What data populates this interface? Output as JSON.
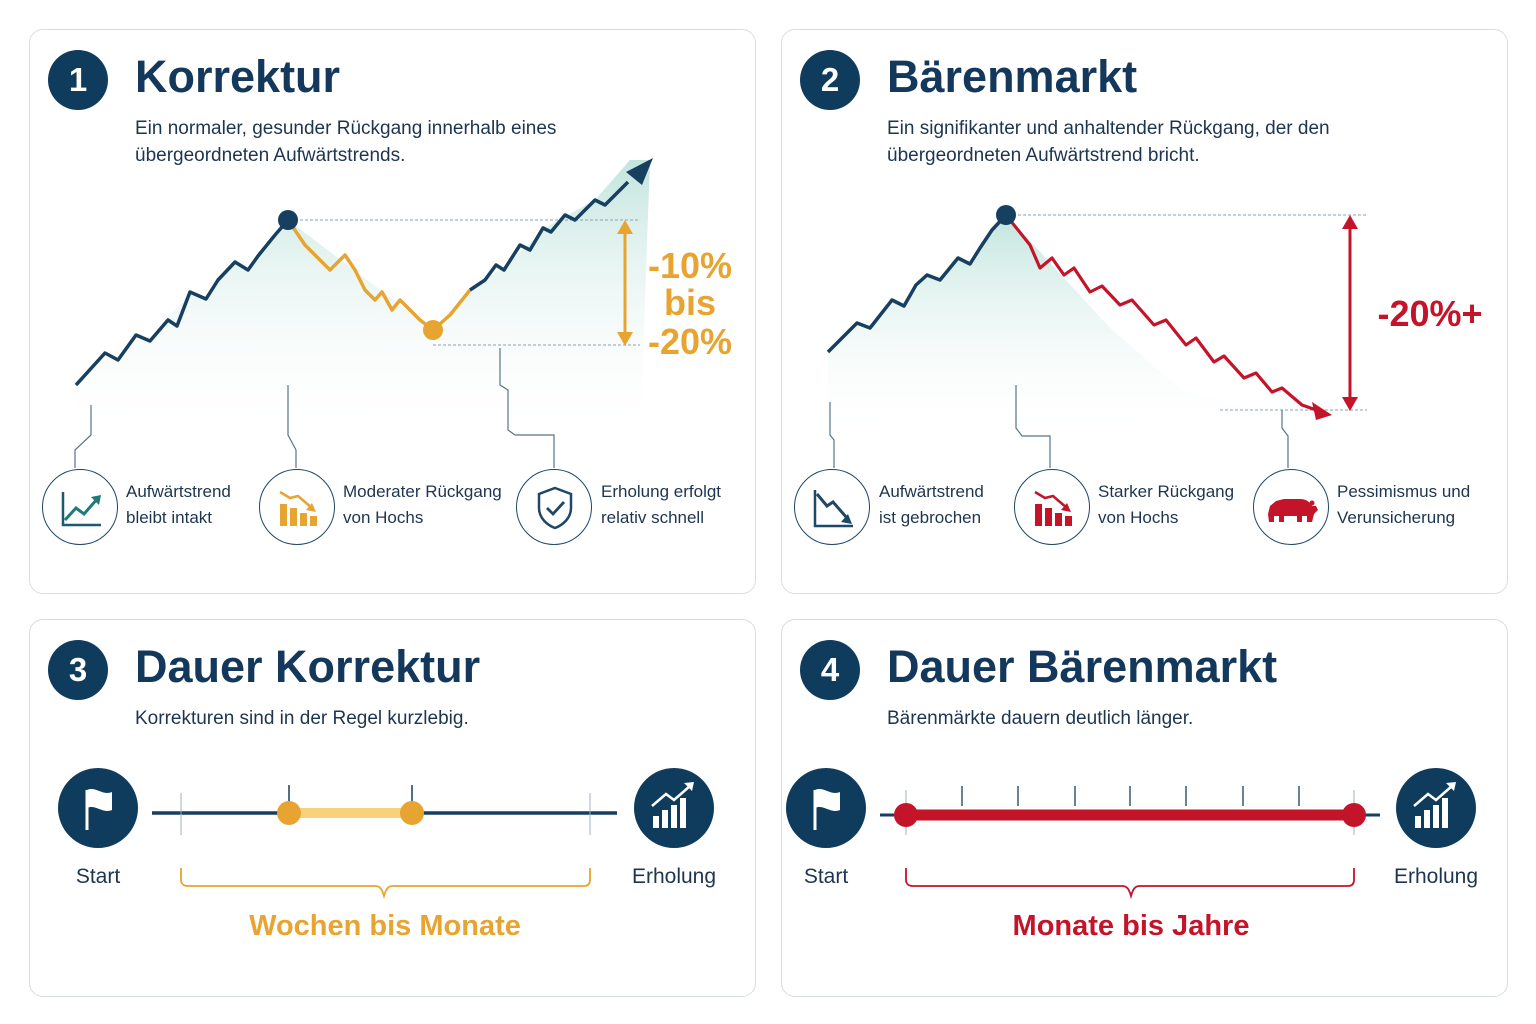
{
  "panel1": {
    "number": "1",
    "title": "Korrektur",
    "description": "Ein normaler, gesunder Rückgang innerhalb eines übergeordneten Aufwärtstrends.",
    "drop_top": "-10%",
    "drop_mid": "bis",
    "drop_bottom": "-20%",
    "features": [
      {
        "icon": "uptrend-chart-icon",
        "line1": "Aufwärtstrend",
        "line2": "bleibt intakt"
      },
      {
        "icon": "declining-bars-icon",
        "line1": "Moderater Rückgang",
        "line2": "von Hochs"
      },
      {
        "icon": "shield-check-icon",
        "line1": "Erholung erfolgt",
        "line2": "relativ schnell"
      }
    ]
  },
  "panel2": {
    "number": "2",
    "title": "Bärenmarkt",
    "description": "Ein signifikanter und anhaltender Rückgang, der den übergeordneten Aufwärtstrend bricht.",
    "drop": "-20%+",
    "features": [
      {
        "icon": "broken-trend-icon",
        "line1": "Aufwärtstrend",
        "line2": "ist gebrochen"
      },
      {
        "icon": "declining-bars-icon",
        "line1": "Starker Rückgang",
        "line2": "von Hochs"
      },
      {
        "icon": "bear-icon",
        "line1": "Pessimismus und",
        "line2": "Verunsicherung"
      }
    ]
  },
  "panel3": {
    "number": "3",
    "title": "Dauer Korrektur",
    "description": "Korrekturen sind in der Regel kurzlebig.",
    "start_label": "Start",
    "end_label": "Erholung",
    "range_label": "Wochen bis Monate",
    "range_color": "#e8a431"
  },
  "panel4": {
    "number": "4",
    "title": "Dauer Bärenmarkt",
    "description": "Bärenmärkte dauern deutlich länger.",
    "start_label": "Start",
    "end_label": "Erholung",
    "range_label": "Monate bis Jahre",
    "range_color": "#c4142a"
  },
  "colors": {
    "navy": "#0f3b5c",
    "orange": "#e8a431",
    "red": "#c4142a",
    "teal_fill": "#cfe9e4"
  }
}
